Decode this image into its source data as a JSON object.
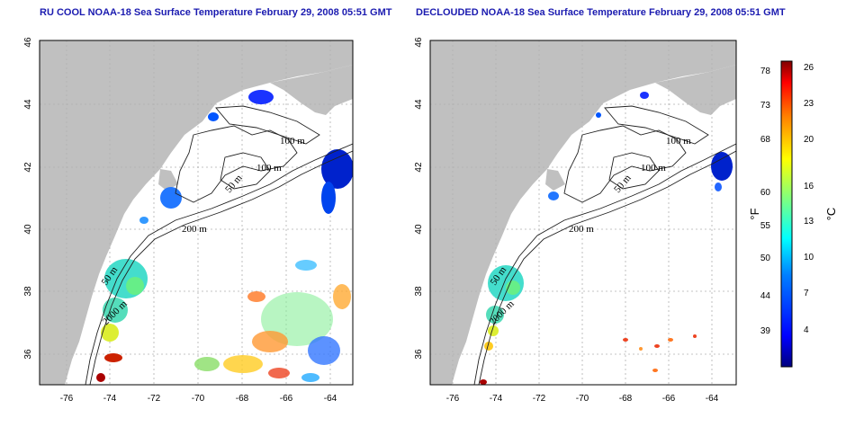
{
  "panels": {
    "left_title": "RU COOL NOAA-18 Sea Surface Temperature February 29, 2008 05:51 GMT",
    "right_title": "DECLOUDED NOAA-18 Sea Surface Temperature February 29, 2008 05:51 GMT"
  },
  "axes": {
    "lon_ticks": [
      "-76",
      "-74",
      "-72",
      "-70",
      "-68",
      "-66",
      "-64"
    ],
    "lat_ticks": [
      "46",
      "44",
      "42",
      "40",
      "38",
      "36"
    ]
  },
  "contour_labels": {
    "m100": "100 m",
    "m50": "50 m",
    "m200": "200 m",
    "m2000": "2000 m"
  },
  "colorbar": {
    "fahrenheit_ticks": [
      "78",
      "73",
      "68",
      "60",
      "55",
      "50",
      "44",
      "39"
    ],
    "celsius_ticks": [
      "26",
      "23",
      "20",
      "16",
      "13",
      "10",
      "7",
      "4"
    ],
    "fahrenheit_unit": "°F",
    "celsius_unit": "°C",
    "colors": [
      "#00007f",
      "#0000ff",
      "#007fff",
      "#00ffff",
      "#7fff7f",
      "#ffff00",
      "#ff7f00",
      "#ff0000",
      "#7f0000"
    ]
  },
  "colors": {
    "land": "#c0c0c0",
    "ocean": "#ffffff",
    "title": "#1b1bb0"
  }
}
